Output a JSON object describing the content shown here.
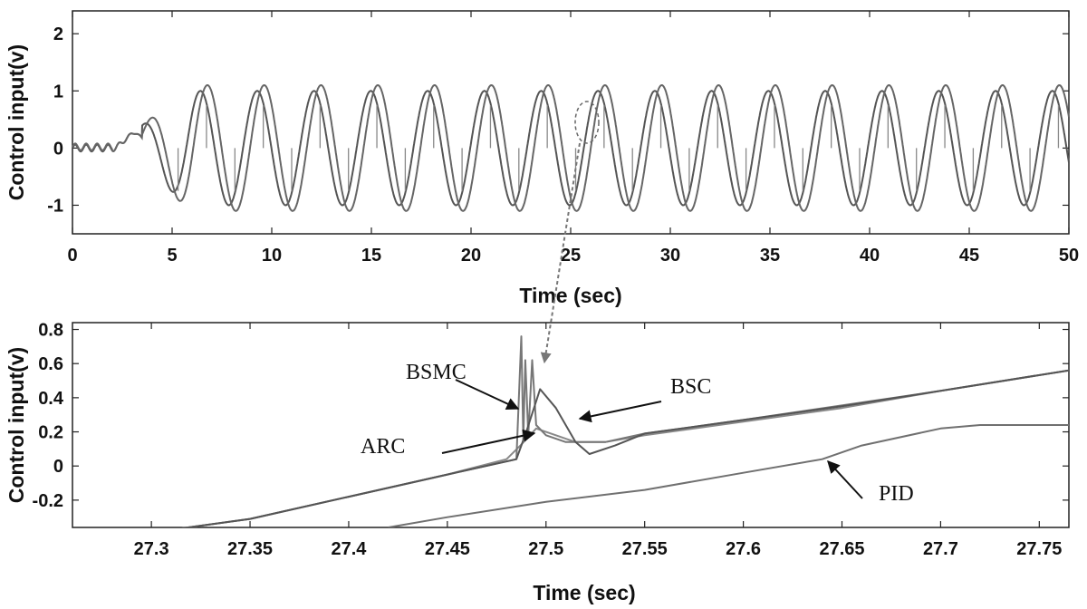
{
  "chart_data": [
    {
      "type": "line",
      "title": "",
      "xlabel": "Time (sec)",
      "ylabel": "Control input(v)",
      "xlim": [
        0,
        50
      ],
      "ylim": [
        -1.5,
        2.4
      ],
      "xticks": [
        0,
        5,
        10,
        15,
        20,
        25,
        30,
        35,
        40,
        45,
        50
      ],
      "xtick_labels": [
        "0",
        "5",
        "10",
        "15",
        "20",
        "25",
        "30",
        "35",
        "40",
        "45",
        "50"
      ],
      "yticks": [
        -1,
        0,
        1,
        2
      ],
      "ytick_labels": [
        "-1",
        "0",
        "1",
        "2"
      ],
      "grid": false,
      "legend": "none",
      "series": [
        {
          "oscillation_period_sec": 2.85,
          "amplitude": 1.0,
          "onset_sec": 3.5,
          "phase_lag_sec": 0,
          "color": "#555555"
        },
        {
          "oscillation_period_sec": 2.85,
          "amplitude": 1.1,
          "onset_sec": 3.5,
          "phase_lag_sec": 0.35,
          "color": "#666666"
        }
      ],
      "zoom_marker": {
        "x": 26.0,
        "y": 0.45
      }
    },
    {
      "type": "line",
      "title": "",
      "xlabel": "Time (sec)",
      "ylabel": "Control input(v)",
      "xlim": [
        27.26,
        27.765
      ],
      "ylim": [
        -0.36,
        0.84
      ],
      "xticks": [
        27.3,
        27.35,
        27.4,
        27.45,
        27.5,
        27.55,
        27.6,
        27.65,
        27.7,
        27.75
      ],
      "xtick_labels": [
        "27.3",
        "27.35",
        "27.4",
        "27.45",
        "27.5",
        "27.55",
        "27.6",
        "27.65",
        "27.7",
        "27.75"
      ],
      "yticks": [
        -0.2,
        0,
        0.2,
        0.4,
        0.6,
        0.8
      ],
      "ytick_labels": [
        "-0.2",
        "0",
        "0.2",
        "0.4",
        "0.6",
        "0.8"
      ],
      "grid": false,
      "legend": "none",
      "annotations": [
        {
          "text": "BSMC",
          "x": 27.49,
          "y": 0.36
        },
        {
          "text": "BSC",
          "x": 27.5,
          "y": 0.3
        },
        {
          "text": "ARC",
          "x": 27.495,
          "y": 0.21
        },
        {
          "text": "PID",
          "x": 27.64,
          "y": 0.04
        }
      ],
      "series": [
        {
          "x": [
            27.26,
            27.3,
            27.35,
            27.4,
            27.45,
            27.48,
            27.487,
            27.495,
            27.505,
            27.515,
            27.53,
            27.55,
            27.6,
            27.65,
            27.7,
            27.765
          ],
          "y": [
            -0.44,
            -0.39,
            -0.31,
            -0.18,
            -0.05,
            0.04,
            0.12,
            0.22,
            0.18,
            0.14,
            0.14,
            0.18,
            0.26,
            0.34,
            0.44,
            0.56
          ],
          "color": "#888888"
        },
        {
          "x": [
            27.26,
            27.3,
            27.35,
            27.4,
            27.45,
            27.485,
            27.4875,
            27.4885,
            27.4895,
            27.491,
            27.493,
            27.495,
            27.5,
            27.51,
            27.53,
            27.55,
            27.6,
            27.7,
            27.765
          ],
          "y": [
            -0.44,
            -0.39,
            -0.31,
            -0.18,
            -0.05,
            0.04,
            0.76,
            0.15,
            0.62,
            0.18,
            0.62,
            0.24,
            0.18,
            0.14,
            0.14,
            0.19,
            0.27,
            0.44,
            0.56
          ],
          "color": "#777777"
        },
        {
          "x": [
            27.26,
            27.3,
            27.35,
            27.4,
            27.45,
            27.485,
            27.49,
            27.497,
            27.505,
            27.515,
            27.522,
            27.535,
            27.55,
            27.6,
            27.65,
            27.7,
            27.765
          ],
          "y": [
            -0.44,
            -0.39,
            -0.31,
            -0.18,
            -0.05,
            0.04,
            0.2,
            0.45,
            0.34,
            0.14,
            0.07,
            0.12,
            0.19,
            0.27,
            0.35,
            0.44,
            0.56
          ],
          "color": "#555555"
        },
        {
          "x": [
            27.42,
            27.45,
            27.5,
            27.55,
            27.6,
            27.64,
            27.66,
            27.7,
            27.72,
            27.765
          ],
          "y": [
            -0.36,
            -0.3,
            -0.21,
            -0.14,
            -0.04,
            0.04,
            0.12,
            0.22,
            0.24,
            0.24
          ],
          "color": "#707070"
        }
      ]
    }
  ]
}
